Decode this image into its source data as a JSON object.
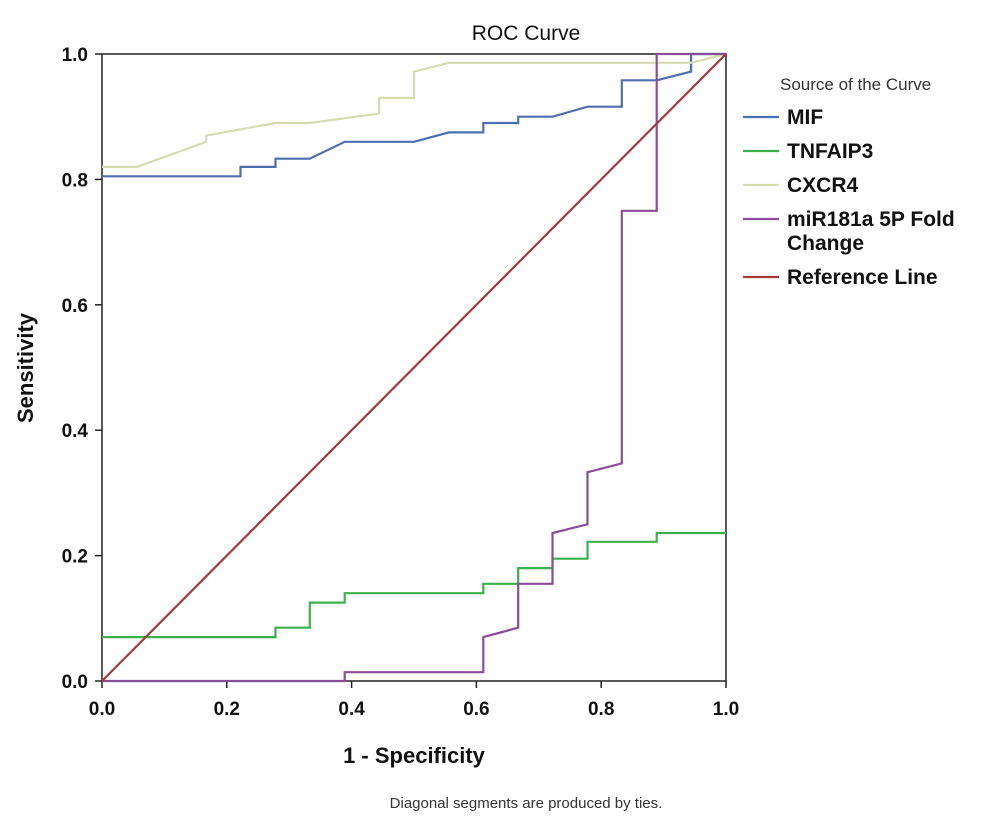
{
  "chart_data": {
    "type": "line",
    "title": "ROC Curve",
    "xlabel": "1 - Specificity",
    "ylabel": "Sensitivity",
    "xlim": [
      0,
      1
    ],
    "ylim": [
      0,
      1
    ],
    "x_ticks": [
      "0.0",
      "0.2",
      "0.4",
      "0.6",
      "0.8",
      "1.0"
    ],
    "y_ticks": [
      "0.0",
      "0.2",
      "0.4",
      "0.6",
      "0.8",
      "1.0"
    ],
    "grid": false,
    "legend_title": "Source of the Curve",
    "legend_position": "right",
    "footnote": "Diagonal segments are produced by ties.",
    "series": [
      {
        "name": "MIF",
        "color": "#4e6faf",
        "points": [
          [
            0,
            0.805
          ],
          [
            0.222,
            0.805
          ],
          [
            0.222,
            0.82
          ],
          [
            0.278,
            0.82
          ],
          [
            0.278,
            0.833
          ],
          [
            0.333,
            0.833
          ],
          [
            0.389,
            0.86
          ],
          [
            0.5,
            0.86
          ],
          [
            0.556,
            0.875
          ],
          [
            0.611,
            0.875
          ],
          [
            0.611,
            0.89
          ],
          [
            0.667,
            0.89
          ],
          [
            0.667,
            0.9
          ],
          [
            0.722,
            0.9
          ],
          [
            0.778,
            0.916
          ],
          [
            0.833,
            0.916
          ],
          [
            0.833,
            0.958
          ],
          [
            0.889,
            0.958
          ],
          [
            0.944,
            0.972
          ],
          [
            0.944,
            1.0
          ],
          [
            1.0,
            1.0
          ]
        ]
      },
      {
        "name": "TNFAIP3",
        "color": "#3cb04a",
        "points": [
          [
            0,
            0.07
          ],
          [
            0.278,
            0.07
          ],
          [
            0.278,
            0.085
          ],
          [
            0.333,
            0.085
          ],
          [
            0.333,
            0.125
          ],
          [
            0.389,
            0.125
          ],
          [
            0.389,
            0.14
          ],
          [
            0.611,
            0.14
          ],
          [
            0.611,
            0.155
          ],
          [
            0.667,
            0.155
          ],
          [
            0.667,
            0.18
          ],
          [
            0.722,
            0.18
          ],
          [
            0.722,
            0.195
          ],
          [
            0.778,
            0.195
          ],
          [
            0.778,
            0.222
          ],
          [
            0.889,
            0.222
          ],
          [
            0.889,
            0.236
          ],
          [
            1.0,
            0.236
          ]
        ]
      },
      {
        "name": "CXCR4",
        "color": "#d6dcb0",
        "points": [
          [
            0,
            0.82
          ],
          [
            0.056,
            0.82
          ],
          [
            0.167,
            0.86
          ],
          [
            0.167,
            0.87
          ],
          [
            0.278,
            0.89
          ],
          [
            0.333,
            0.89
          ],
          [
            0.444,
            0.905
          ],
          [
            0.444,
            0.93
          ],
          [
            0.5,
            0.93
          ],
          [
            0.5,
            0.972
          ],
          [
            0.556,
            0.986
          ],
          [
            0.944,
            0.986
          ],
          [
            1.0,
            1.0
          ]
        ]
      },
      {
        "name": "miR181a 5P Fold Change",
        "color": "#8a4d9a",
        "points": [
          [
            0,
            0
          ],
          [
            0.389,
            0
          ],
          [
            0.389,
            0.014
          ],
          [
            0.611,
            0.014
          ],
          [
            0.611,
            0.07
          ],
          [
            0.667,
            0.085
          ],
          [
            0.667,
            0.155
          ],
          [
            0.722,
            0.155
          ],
          [
            0.722,
            0.236
          ],
          [
            0.778,
            0.25
          ],
          [
            0.778,
            0.333
          ],
          [
            0.833,
            0.347
          ],
          [
            0.833,
            0.75
          ],
          [
            0.889,
            0.75
          ],
          [
            0.889,
            1.0
          ],
          [
            1.0,
            1.0
          ]
        ]
      },
      {
        "name": "Reference Line",
        "color": "#a33a3a",
        "points": [
          [
            0,
            0
          ],
          [
            1,
            1
          ]
        ]
      }
    ]
  }
}
